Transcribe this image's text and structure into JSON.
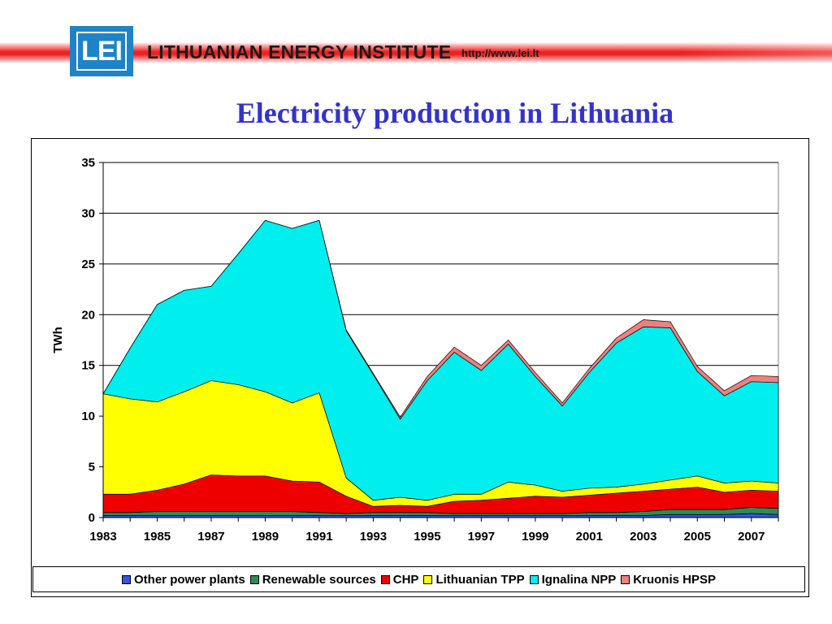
{
  "header": {
    "logo_text": "LEI",
    "institute_name": "LITHUANIAN ENERGY INSTITUTE",
    "url": "http://www.lei.lt"
  },
  "slide": {
    "title": "Electricity production in Lithuania"
  },
  "colors": {
    "title": "#3333cc",
    "header_band": "#ee2020",
    "logo_blue": "#1e83c8"
  },
  "chart_data": {
    "type": "area",
    "stacked": true,
    "ylabel": "TWh",
    "xlabel": "",
    "ylim": [
      0,
      35
    ],
    "yticks": [
      0,
      5,
      10,
      15,
      20,
      25,
      30,
      35
    ],
    "xtick_labels": [
      "1983",
      "1985",
      "1987",
      "1989",
      "1991",
      "1993",
      "1995",
      "1997",
      "1999",
      "2001",
      "2003",
      "2005",
      "2007"
    ],
    "grid": "horizontal",
    "legend_position": "bottom",
    "x": [
      1983,
      1984,
      1985,
      1986,
      1987,
      1988,
      1989,
      1990,
      1991,
      1992,
      1993,
      1994,
      1995,
      1996,
      1997,
      1998,
      1999,
      2000,
      2001,
      2002,
      2003,
      2004,
      2005,
      2006,
      2007,
      2008
    ],
    "series": [
      {
        "name": "Other power plants",
        "color": "#3355dd",
        "values": [
          0.2,
          0.2,
          0.2,
          0.2,
          0.2,
          0.2,
          0.2,
          0.2,
          0.2,
          0.2,
          0.2,
          0.2,
          0.2,
          0.2,
          0.2,
          0.2,
          0.2,
          0.2,
          0.2,
          0.2,
          0.2,
          0.3,
          0.3,
          0.3,
          0.4,
          0.3
        ]
      },
      {
        "name": "Renewable sources",
        "color": "#2e8b57",
        "values": [
          0.3,
          0.3,
          0.4,
          0.4,
          0.4,
          0.4,
          0.4,
          0.4,
          0.3,
          0.2,
          0.3,
          0.3,
          0.3,
          0.2,
          0.2,
          0.2,
          0.2,
          0.2,
          0.3,
          0.3,
          0.4,
          0.5,
          0.5,
          0.5,
          0.6,
          0.6
        ]
      },
      {
        "name": "CHP",
        "color": "#ee0000",
        "values": [
          1.8,
          1.8,
          2.1,
          2.7,
          3.6,
          3.5,
          3.5,
          3.0,
          3.0,
          1.7,
          0.6,
          0.7,
          0.6,
          1.2,
          1.3,
          1.5,
          1.7,
          1.6,
          1.7,
          1.9,
          2.0,
          2.0,
          2.2,
          1.7,
          1.7,
          1.7
        ]
      },
      {
        "name": "Lithuanian TPP",
        "color": "#ffff00",
        "values": [
          9.9,
          9.4,
          8.7,
          9.1,
          9.3,
          9.0,
          8.3,
          7.7,
          8.8,
          1.8,
          0.6,
          0.8,
          0.6,
          0.7,
          0.6,
          1.6,
          1.1,
          0.6,
          0.7,
          0.6,
          0.7,
          0.9,
          1.1,
          0.9,
          0.9,
          0.8
        ]
      },
      {
        "name": "Ignalina NPP",
        "color": "#00eeee",
        "values": [
          0.0,
          5.0,
          9.6,
          10.0,
          9.3,
          12.9,
          16.9,
          17.2,
          17.0,
          14.5,
          12.4,
          7.7,
          11.8,
          14.0,
          12.2,
          13.6,
          10.7,
          8.4,
          11.4,
          14.2,
          15.5,
          15.0,
          10.3,
          8.6,
          9.8,
          9.9
        ]
      },
      {
        "name": "Kruonis HPSP",
        "color": "#f08080",
        "values": [
          0.0,
          0.0,
          0.0,
          0.0,
          0.0,
          0.0,
          0.0,
          0.0,
          0.0,
          0.1,
          0.1,
          0.2,
          0.4,
          0.5,
          0.5,
          0.4,
          0.4,
          0.3,
          0.4,
          0.5,
          0.7,
          0.6,
          0.5,
          0.5,
          0.6,
          0.6
        ]
      }
    ]
  }
}
